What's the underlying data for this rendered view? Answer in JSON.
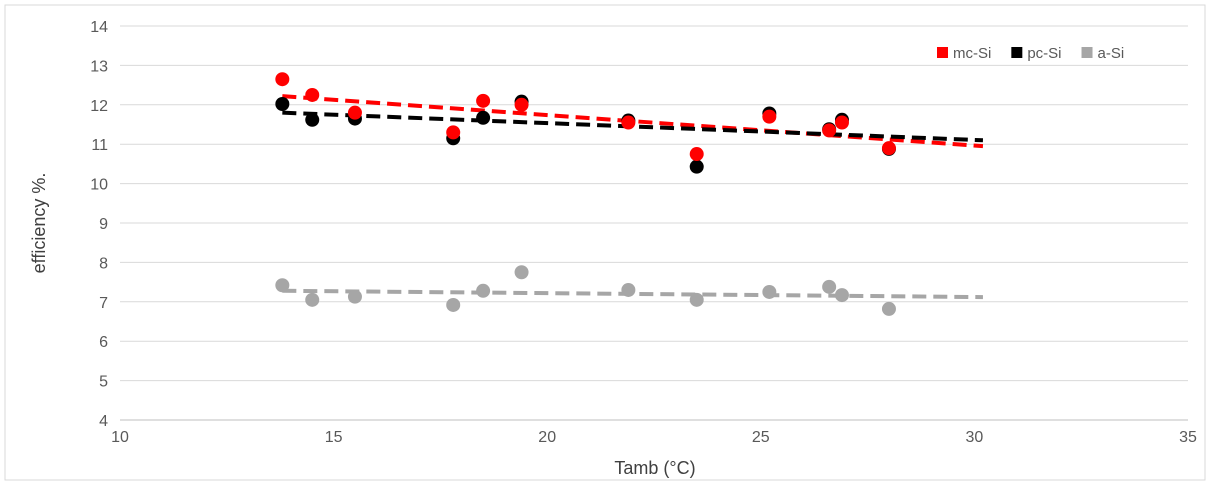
{
  "chart_data": {
    "type": "scatter",
    "title": "",
    "xlabel": "Tamb (°C)",
    "ylabel": "efficiency %.",
    "xlim": [
      10,
      35
    ],
    "ylim": [
      4,
      14
    ],
    "xticks": [
      10,
      15,
      20,
      25,
      30,
      35
    ],
    "yticks": [
      4,
      5,
      6,
      7,
      8,
      9,
      10,
      11,
      12,
      13,
      14
    ],
    "grid": true,
    "legend_position": "top-right",
    "trendline_style": "dashed linear",
    "series": [
      {
        "name": "mc-Si",
        "color": "#ff0000",
        "x": [
          13.8,
          14.5,
          15.5,
          17.8,
          18.5,
          19.4,
          21.9,
          23.5,
          25.2,
          26.6,
          26.9,
          28.0
        ],
        "y": [
          12.65,
          12.25,
          11.8,
          11.3,
          12.1,
          12.0,
          11.55,
          10.75,
          11.7,
          11.35,
          11.55,
          10.9
        ],
        "trend": [
          [
            13.8,
            12.22
          ],
          [
            30.2,
            10.95
          ]
        ]
      },
      {
        "name": "pc-Si",
        "color": "#000000",
        "x": [
          13.8,
          14.5,
          15.5,
          17.8,
          18.5,
          19.4,
          21.9,
          23.5,
          25.2,
          26.6,
          26.9,
          28.0
        ],
        "y": [
          12.02,
          11.62,
          11.65,
          11.15,
          11.67,
          12.08,
          11.6,
          10.43,
          11.78,
          11.38,
          11.62,
          10.88
        ],
        "trend": [
          [
            13.8,
            11.8
          ],
          [
            30.2,
            11.1
          ]
        ]
      },
      {
        "name": "a-Si",
        "color": "#a6a6a6",
        "x": [
          13.8,
          14.5,
          15.5,
          17.8,
          18.5,
          19.4,
          21.9,
          23.5,
          25.2,
          26.6,
          26.9,
          28.0
        ],
        "y": [
          7.42,
          7.05,
          7.13,
          6.92,
          7.28,
          7.75,
          7.3,
          7.05,
          7.25,
          7.38,
          7.17,
          6.82
        ],
        "trend": [
          [
            13.8,
            7.28
          ],
          [
            30.2,
            7.12
          ]
        ]
      }
    ]
  }
}
